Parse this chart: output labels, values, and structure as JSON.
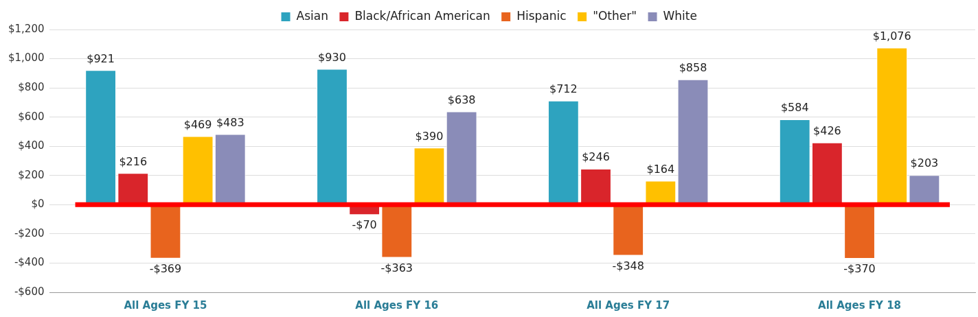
{
  "chart_data": {
    "type": "bar",
    "categories": [
      "All Ages FY 15",
      "All Ages FY 16",
      "All Ages FY 17",
      "All Ages FY 18"
    ],
    "series": [
      {
        "name": "Asian",
        "color": "#2ea3bf",
        "values": [
          921,
          930,
          712,
          584
        ],
        "value_labels": [
          "$921",
          "$930",
          "$712",
          "$584"
        ]
      },
      {
        "name": "Black/African American",
        "color": "#d9252b",
        "values": [
          216,
          -70,
          246,
          426
        ],
        "value_labels": [
          "$216",
          "-$70",
          "$246",
          "$426"
        ]
      },
      {
        "name": "Hispanic",
        "color": "#e8641e",
        "values": [
          -369,
          -363,
          -348,
          -370
        ],
        "value_labels": [
          "-$369",
          "-$363",
          "-$348",
          "-$370"
        ]
      },
      {
        "name": "\"Other\"",
        "color": "#ffc000",
        "values": [
          469,
          390,
          164,
          1076
        ],
        "value_labels": [
          "$469",
          "$390",
          "$164",
          "$1,076"
        ]
      },
      {
        "name": "White",
        "color": "#8a8cb8",
        "values": [
          483,
          638,
          858,
          203
        ],
        "value_labels": [
          "$483",
          "$638",
          "$858",
          "$203"
        ]
      }
    ],
    "ylim": [
      -600,
      1200
    ],
    "yticks": [
      {
        "value": -600,
        "label": "-$600"
      },
      {
        "value": -400,
        "label": "-$400"
      },
      {
        "value": -200,
        "label": "-$200"
      },
      {
        "value": 0,
        "label": "$0"
      },
      {
        "value": 200,
        "label": "$200"
      },
      {
        "value": 400,
        "label": "$400"
      },
      {
        "value": 600,
        "label": "$600"
      },
      {
        "value": 800,
        "label": "$800"
      },
      {
        "value": 1000,
        "label": "$1,000"
      },
      {
        "value": 1200,
        "label": "$1,200"
      }
    ],
    "ref_lines": [
      {
        "axis": "y",
        "value": 0,
        "color": "#ff0000"
      }
    ],
    "grid": "y",
    "legend": "top"
  }
}
